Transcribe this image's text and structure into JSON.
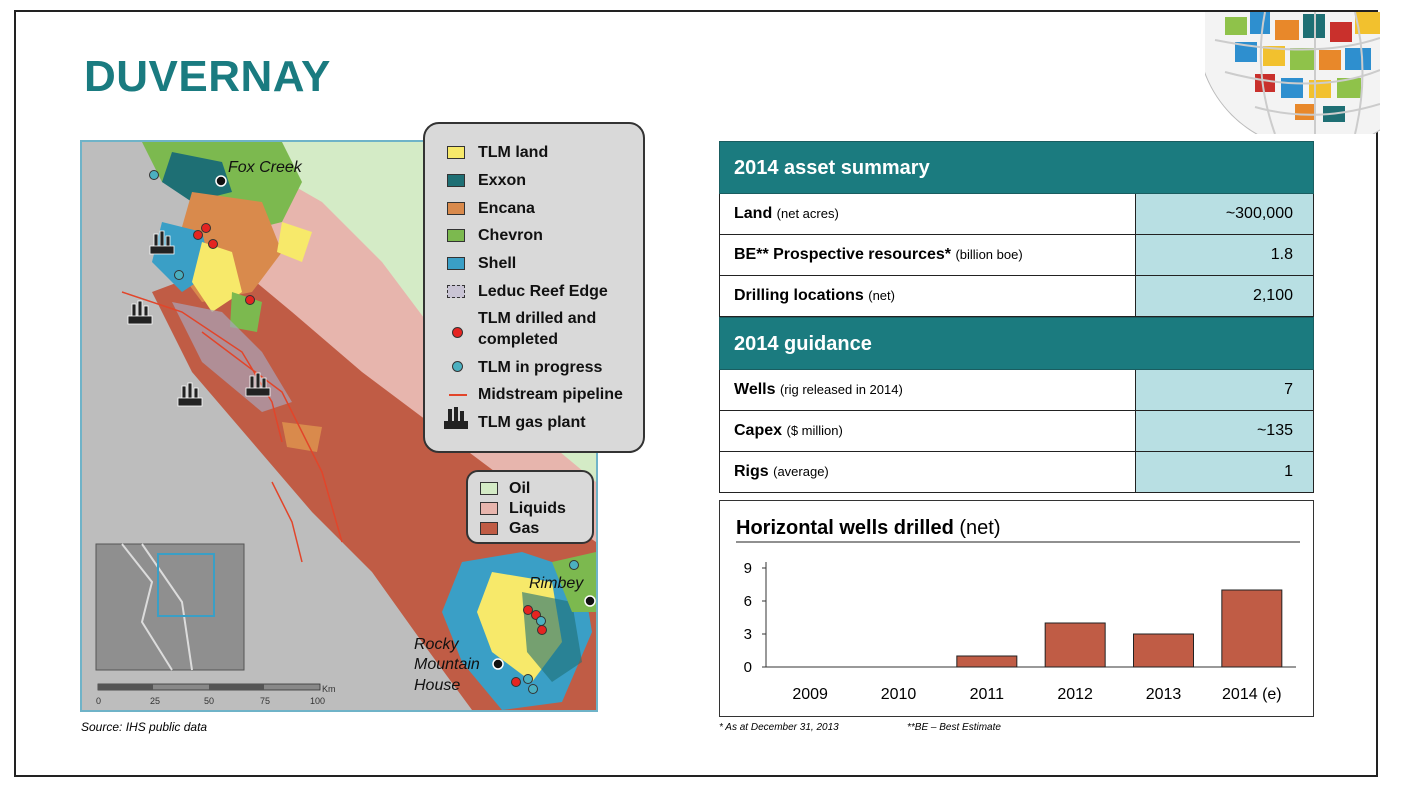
{
  "slide": {
    "title": "DUVERNAY"
  },
  "map": {
    "places": {
      "fox_creek": "Fox Creek",
      "rimbey": "Rimbey",
      "rocky_line1": "Rocky",
      "rocky_line2": "Mountain",
      "rocky_line3": "House"
    },
    "scale": {
      "ticks": [
        "0",
        "25",
        "50",
        "75",
        "100"
      ],
      "unit": "Km"
    },
    "legend_companies": [
      {
        "label": "TLM land",
        "color": "#f7e96a"
      },
      {
        "label": "Exxon",
        "color": "#1e6f74"
      },
      {
        "label": "Encana",
        "color": "#d98a4c"
      },
      {
        "label": "Chevron",
        "color": "#7cb94f"
      },
      {
        "label": "Shell",
        "color": "#3a9fc6"
      },
      {
        "label": "Leduc Reef Edge",
        "color": "#c9c4d4"
      }
    ],
    "legend_markers": [
      {
        "label_line1": "TLM drilled and",
        "label_line2": "completed",
        "color": "#e52421"
      },
      {
        "label": "TLM in progress",
        "color": "#4bb0c0"
      },
      {
        "label": "Midstream pipeline",
        "color": "#e2452a"
      },
      {
        "label": "TLM gas plant",
        "icon": "gas-plant-icon"
      }
    ],
    "legend_zones": [
      {
        "label": "Oil",
        "color": "#d4ebc6"
      },
      {
        "label": "Liquids",
        "color": "#e7b5ad"
      },
      {
        "label": "Gas",
        "color": "#c05c45"
      }
    ],
    "source": "Source: IHS public data"
  },
  "asset_summary": {
    "header": "2014 asset summary",
    "rows": [
      {
        "label": "Land",
        "note": "(net acres)",
        "value": "~300,000"
      },
      {
        "label": "BE** Prospective resources*",
        "note": "(billion boe)",
        "value": "1.8"
      },
      {
        "label": "Drilling locations",
        "note": "(net)",
        "value": "2,100"
      }
    ]
  },
  "guidance": {
    "header": "2014 guidance",
    "rows": [
      {
        "label": "Wells",
        "note": "(rig released in 2014)",
        "value": "7"
      },
      {
        "label": "Capex",
        "note": "($ million)",
        "value": "~135"
      },
      {
        "label": "Rigs",
        "note": "(average)",
        "value": "1"
      }
    ]
  },
  "chart_data": {
    "type": "bar",
    "title": "Horizontal wells drilled",
    "title_suffix": "(net)",
    "categories": [
      "2009",
      "2010",
      "2011",
      "2012",
      "2013",
      "2014 (e)"
    ],
    "values": [
      0,
      0,
      1,
      4,
      3,
      7
    ],
    "yticks": [
      0,
      3,
      6,
      9
    ],
    "ylim": [
      0,
      9
    ],
    "bar_color": "#c05c45",
    "grid": false
  },
  "footnotes": {
    "asof": "* As at December 31, 2013",
    "be": "**BE – Best Estimate"
  }
}
